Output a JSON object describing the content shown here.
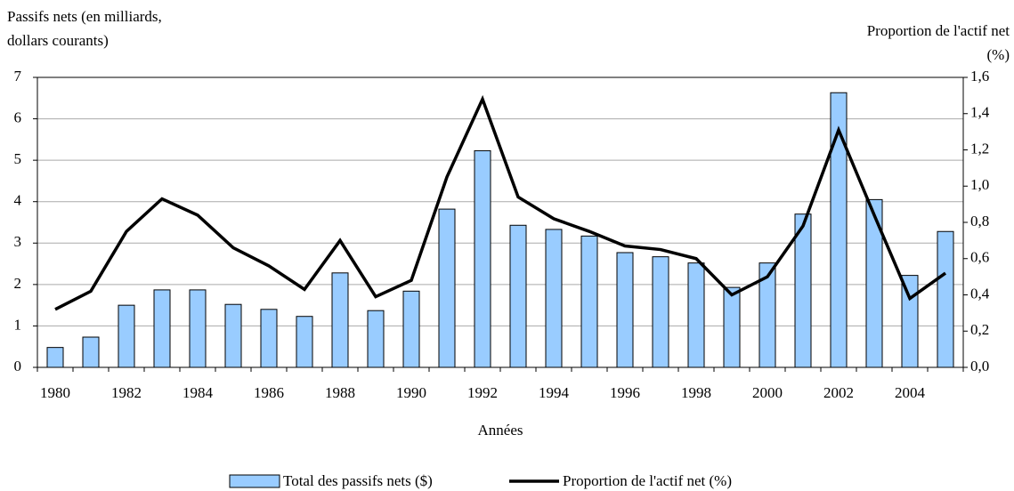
{
  "chart_data": {
    "type": "bar-line",
    "ylabel": [
      "Passifs nets (en milliards,",
      "dollars courants)"
    ],
    "y2label": [
      "Proportion de l'actif net",
      "(%)"
    ],
    "xlabel": "Années",
    "categories": [
      "1980",
      null,
      "1982",
      null,
      "1984",
      null,
      "1986",
      null,
      "1988",
      null,
      "1990",
      null,
      "1992",
      null,
      "1994",
      null,
      "1996",
      null,
      "1998",
      null,
      "2000",
      null,
      "2002",
      null,
      "2004",
      null
    ],
    "series": [
      {
        "name": "Total des passifs nets ($)",
        "color": "#99ccff",
        "kind": "bar",
        "values": [
          0.48,
          0.73,
          1.5,
          1.87,
          1.87,
          1.52,
          1.4,
          1.23,
          2.28,
          1.37,
          1.84,
          3.82,
          5.23,
          3.43,
          3.33,
          3.17,
          2.77,
          2.67,
          2.52,
          1.93,
          2.52,
          3.7,
          6.63,
          4.05,
          2.22,
          3.28
        ]
      },
      {
        "name": "Proportion de l'actif net (%)",
        "color": "#000000",
        "kind": "line",
        "axis": "y2",
        "values": [
          0.32,
          0.42,
          0.75,
          0.93,
          0.84,
          0.66,
          0.56,
          0.43,
          0.7,
          0.39,
          0.48,
          1.05,
          1.48,
          0.94,
          0.82,
          0.75,
          0.67,
          0.65,
          0.6,
          0.4,
          0.5,
          0.78,
          1.31,
          0.84,
          0.38,
          0.52
        ]
      }
    ],
    "ylim": [
      0,
      7
    ],
    "yticks": [
      0,
      1,
      2,
      3,
      4,
      5,
      6,
      7
    ],
    "y2lim": [
      0,
      1.6
    ],
    "y2ticks": [
      {
        "value": 0,
        "label": "0,0"
      },
      {
        "value": 0.2,
        "label": "0,2"
      },
      {
        "value": 0.4,
        "label": "0,4"
      },
      {
        "value": 0.6,
        "label": "0,6"
      },
      {
        "value": 0.8,
        "label": "0,8"
      },
      {
        "value": 1.0,
        "label": "1,0"
      },
      {
        "value": 1.2,
        "label": "1,2"
      },
      {
        "value": 1.4,
        "label": "1,4"
      },
      {
        "value": 1.6,
        "label": "1,6"
      }
    ],
    "grid": true,
    "legend": "bottom"
  }
}
